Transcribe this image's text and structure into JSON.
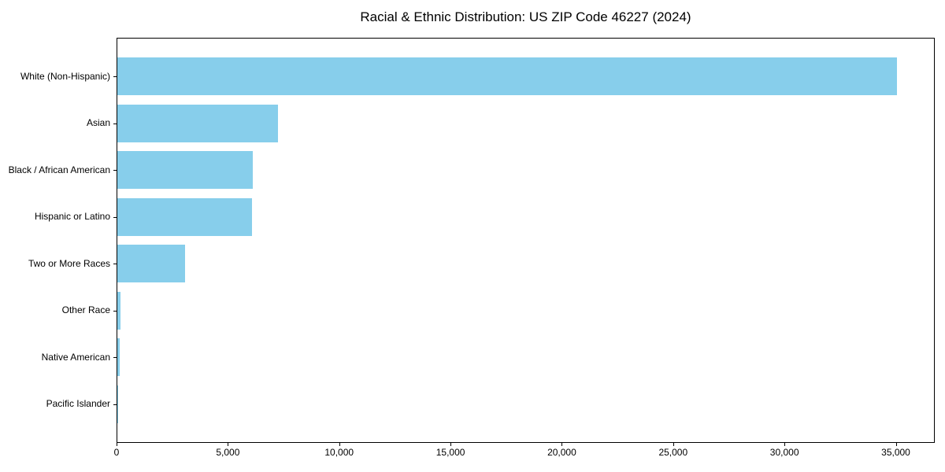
{
  "chart_data": {
    "type": "bar",
    "orientation": "horizontal",
    "title": "Racial & Ethnic Distribution: US ZIP Code 46227 (2024)",
    "categories": [
      "White (Non-Hispanic)",
      "Asian",
      "Black / African American",
      "Hispanic or Latino",
      "Two or More Races",
      "Other Race",
      "Native American",
      "Pacific Islander"
    ],
    "values": [
      35000,
      7200,
      6100,
      6050,
      3050,
      150,
      100,
      30
    ],
    "xlabel": "",
    "ylabel": "",
    "xlim": [
      0,
      36750
    ],
    "x_ticks": [
      0,
      5000,
      10000,
      15000,
      20000,
      25000,
      30000,
      35000
    ],
    "x_tick_labels": [
      "0",
      "5,000",
      "10,000",
      "15,000",
      "20,000",
      "25,000",
      "30,000",
      "35,000"
    ],
    "bar_color": "#87CEEB",
    "axis_color": "#000000",
    "grid": false,
    "legend": null
  }
}
